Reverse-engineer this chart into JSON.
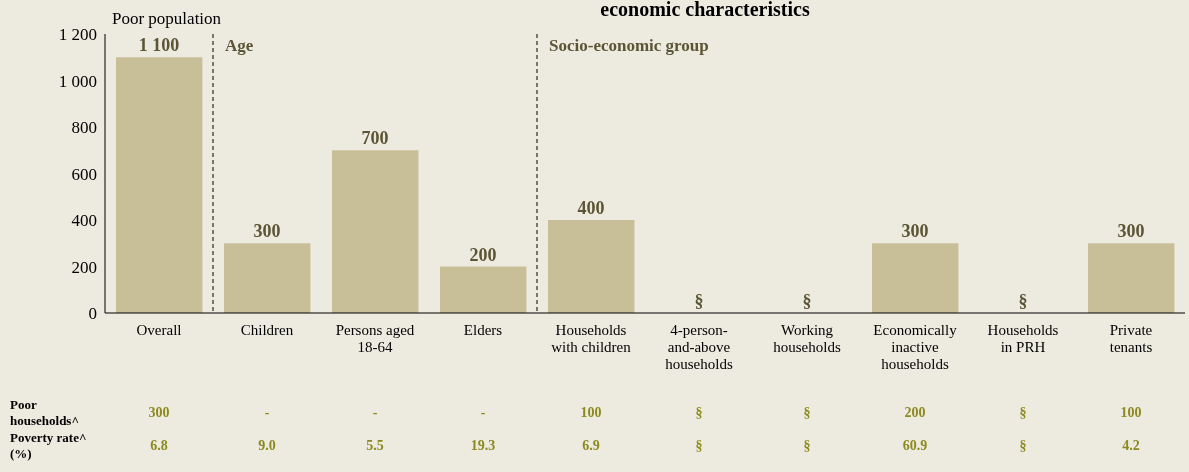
{
  "chart_data": {
    "type": "bar",
    "title": "economic characteristics",
    "ylabel": "Poor population",
    "categories": [
      "Overall",
      "Children",
      "Persons aged 18-64",
      "Elders",
      "Households with children",
      "4-person-and-above households",
      "Working households",
      "Economically inactive households",
      "Households in PRH",
      "Private tenants"
    ],
    "values": [
      1100,
      300,
      700,
      200,
      400,
      null,
      null,
      300,
      null,
      300
    ],
    "value_labels": [
      "1 100",
      "300",
      "700",
      "200",
      "400",
      "§",
      "§",
      "300",
      "§",
      "300"
    ],
    "color": "#c8bf98",
    "ylim": [
      0,
      1200
    ],
    "yticks": [
      0,
      200,
      400,
      600,
      800,
      {
        "value": 1000,
        "label": "1 000"
      },
      {
        "value": 1200,
        "label": "1 200"
      }
    ],
    "annotations": [
      "Age",
      "Socio-economic group",
      "Poor households^",
      "300",
      "-",
      "-",
      "-",
      "100",
      "§",
      "§",
      "200",
      "§",
      "100",
      "Poverty rate^ (%)",
      "6.8",
      "9.0",
      "5.5",
      "19.3",
      "6.9",
      "§",
      "§",
      "60.9",
      "§",
      "4.2"
    ],
    "grid": false,
    "legend": false
  }
}
